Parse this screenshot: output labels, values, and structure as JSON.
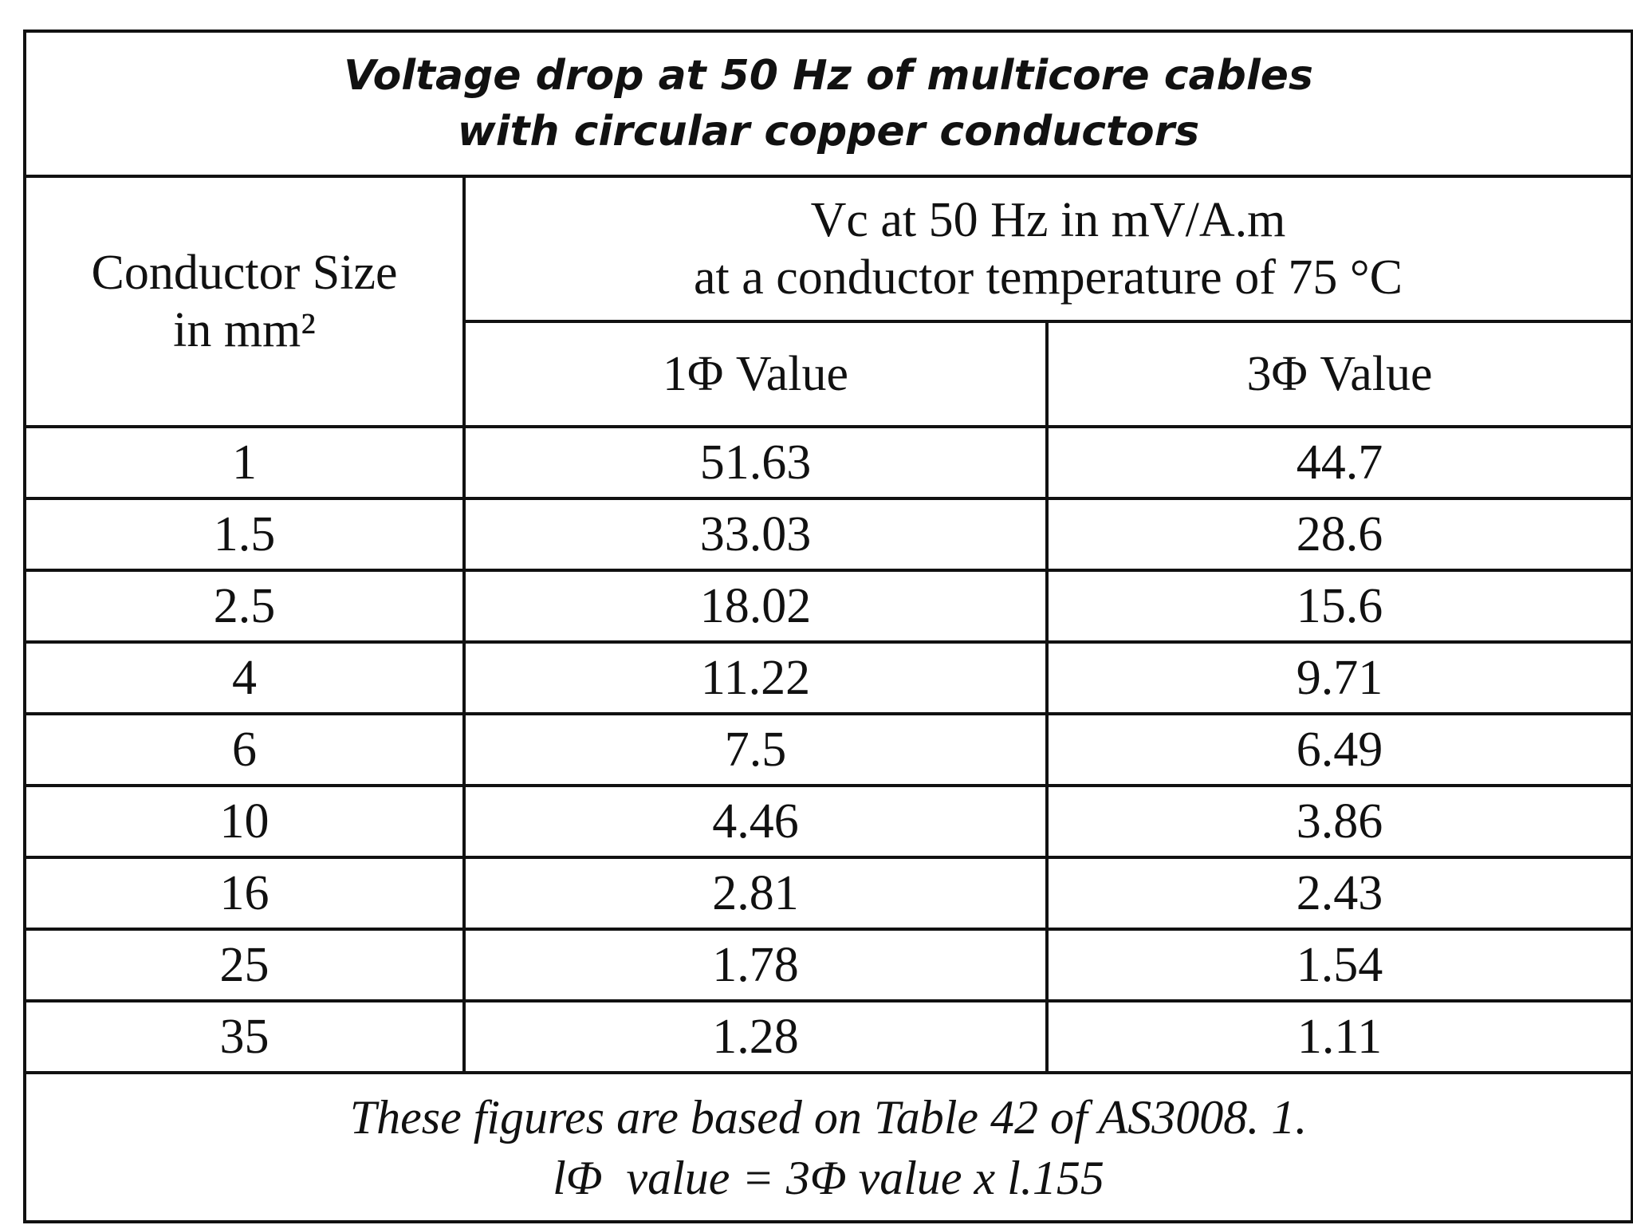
{
  "title": {
    "lines": [
      "Voltage drop at 50 Hz of multicore cables",
      "with circular copper conductors"
    ]
  },
  "table": {
    "header": {
      "size": {
        "lines": [
          "Conductor Size",
          "in mm²"
        ]
      },
      "group": {
        "lines": [
          "Vc at 50 Hz in mV/A.m",
          "at a conductor temperature of 75 °C"
        ]
      },
      "columns": [
        "1Φ Value",
        "3Φ Value"
      ]
    },
    "rows": [
      [
        1,
        51.63,
        44.7
      ],
      [
        1.5,
        33.03,
        28.6
      ],
      [
        2.5,
        18.02,
        15.6
      ],
      [
        4,
        11.22,
        9.71
      ],
      [
        6,
        7.5,
        6.49
      ],
      [
        10,
        4.46,
        3.86
      ],
      [
        16,
        2.81,
        2.43
      ],
      [
        25,
        1.78,
        1.54
      ],
      [
        35,
        1.28,
        1.11
      ]
    ]
  },
  "footer": {
    "lines": [
      "These figures are based on Table 42 of AS3008. 1.",
      "lΦ  value = 3Φ value x l.155"
    ]
  }
}
